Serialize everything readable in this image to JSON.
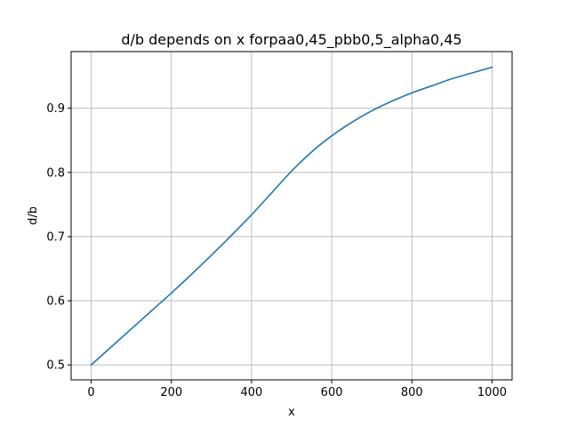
{
  "chart_data": {
    "type": "line",
    "title": "d/b depends on x forpaa0,45_pbb0,5_alpha0,45",
    "xlabel": "x",
    "ylabel": "d/b",
    "xlim": [
      -50,
      1050
    ],
    "ylim": [
      0.4767,
      0.9883
    ],
    "grid": true,
    "xticks": [
      0,
      200,
      400,
      600,
      800,
      1000
    ],
    "yticks": [
      0.5,
      0.6,
      0.7,
      0.8,
      0.9
    ],
    "series": [
      {
        "color": "#1f77b4",
        "x": [
          0,
          50,
          100,
          150,
          200,
          250,
          300,
          350,
          400,
          450,
          500,
          550,
          600,
          650,
          700,
          750,
          800,
          850,
          900,
          950,
          1000
        ],
        "y": [
          0.5,
          0.528,
          0.556,
          0.584,
          0.612,
          0.641,
          0.671,
          0.702,
          0.734,
          0.768,
          0.802,
          0.832,
          0.857,
          0.878,
          0.896,
          0.911,
          0.924,
          0.935,
          0.946,
          0.955,
          0.964
        ]
      }
    ]
  }
}
